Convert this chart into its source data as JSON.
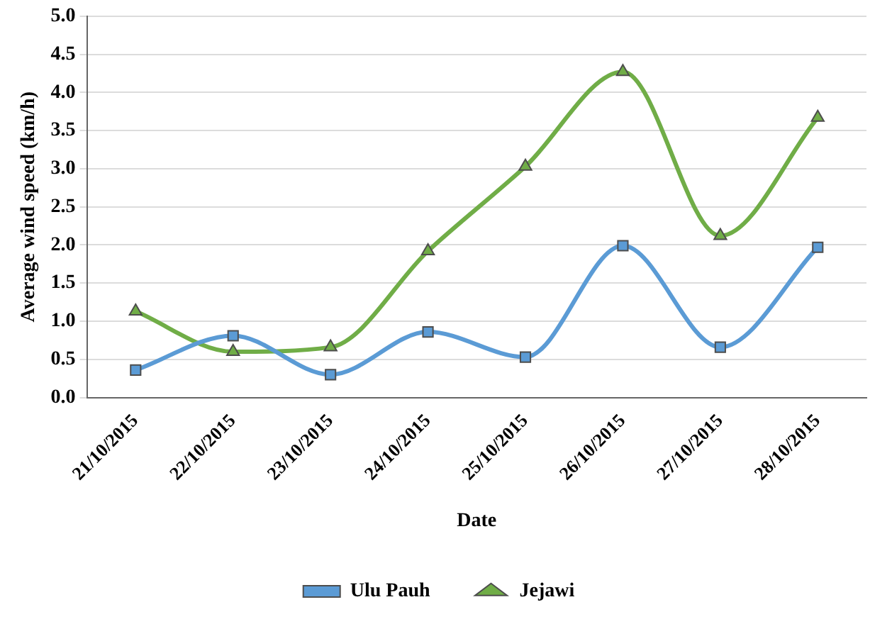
{
  "chart_data": {
    "type": "line",
    "xlabel": "Date",
    "ylabel": "Average wind speed (km/h)",
    "categories": [
      "21/10/2015",
      "22/10/2015",
      "23/10/2015",
      "24/10/2015",
      "25/10/2015",
      "26/10/2015",
      "27/10/2015",
      "28/10/2015"
    ],
    "series": [
      {
        "name": "Ulu Pauh",
        "color": "#5b9bd5",
        "marker": "square",
        "values": [
          0.36,
          0.81,
          0.3,
          0.86,
          0.53,
          1.99,
          0.66,
          1.97
        ]
      },
      {
        "name": "Jejawi",
        "color": "#70ad47",
        "marker": "triangle",
        "values": [
          1.13,
          0.6,
          0.66,
          1.92,
          3.03,
          4.27,
          2.12,
          3.67
        ]
      }
    ],
    "ylim": [
      0,
      5
    ],
    "yticks": [
      {
        "value": 0,
        "label": "0.0"
      },
      {
        "value": 0.5,
        "label": "0.5"
      },
      {
        "value": 1,
        "label": "1.0"
      },
      {
        "value": 1.5,
        "label": "1.5"
      },
      {
        "value": 2,
        "label": "2.0"
      },
      {
        "value": 2.5,
        "label": "2.5"
      },
      {
        "value": 3,
        "label": "3.0"
      },
      {
        "value": 3.5,
        "label": "3.5"
      },
      {
        "value": 4,
        "label": "4.0"
      },
      {
        "value": 4.5,
        "label": "4.5"
      },
      {
        "value": 5,
        "label": "5.0"
      }
    ],
    "grid": "y",
    "legend": "bottom",
    "line_style": "solid"
  }
}
